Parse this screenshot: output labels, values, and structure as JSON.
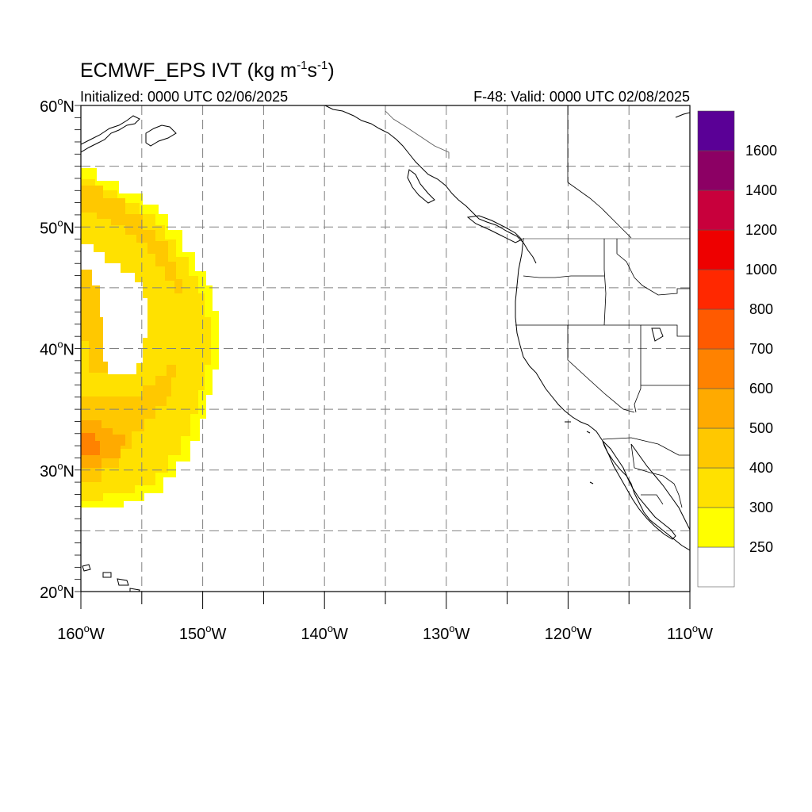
{
  "title": {
    "prefix": "ECMWF_EPS IVT (kg m",
    "exp1": "-1",
    "mid": "s",
    "exp2": "-1",
    "suffix": ")"
  },
  "subtitle_left": "Initialized: 0000 UTC 02/06/2025",
  "subtitle_right": "F-48: Valid: 0000 UTC 02/08/2025",
  "map": {
    "lon_range": [
      -160,
      -110
    ],
    "lat_range": [
      20,
      60
    ],
    "grid": "dashed every 5 degrees",
    "lat_ticks": [
      {
        "value": 60,
        "label": "60"
      },
      {
        "value": 50,
        "label": "50"
      },
      {
        "value": 40,
        "label": "40"
      },
      {
        "value": 30,
        "label": "30"
      },
      {
        "value": 20,
        "label": "20"
      }
    ],
    "lon_ticks": [
      {
        "value": -160,
        "label": "160"
      },
      {
        "value": -150,
        "label": "150"
      },
      {
        "value": -140,
        "label": "140"
      },
      {
        "value": -130,
        "label": "130"
      },
      {
        "value": -120,
        "label": "120"
      },
      {
        "value": -110,
        "label": "110"
      }
    ],
    "lat_suffix": "N",
    "lon_suffix": "W",
    "degree": "o"
  },
  "colorbar": {
    "colors": [
      "#ffffff",
      "#ffff00",
      "#ffe100",
      "#ffc800",
      "#ffaa00",
      "#ff8200",
      "#ff5a00",
      "#ff2800",
      "#ee0000",
      "#c8003c",
      "#8c0064",
      "#5a0096"
    ],
    "labels": [
      "250",
      "300",
      "400",
      "500",
      "600",
      "700",
      "800",
      "1000",
      "1200",
      "1400",
      "1600"
    ]
  },
  "colors": {
    "ivt_250_300": "#ffff00",
    "ivt_300_400": "#ffe100",
    "ivt_400_500": "#ffc800",
    "ivt_500_600": "#ffaa00",
    "ivt_600_700": "#ff8200",
    "grid": "#808080"
  }
}
